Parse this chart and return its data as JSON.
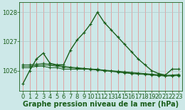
{
  "xlabel": "Graphe pression niveau de la mer (hPa)",
  "background_color": "#cde8e8",
  "plot_bg_color": "#cde8e8",
  "grid_color_h": "#b0c8c8",
  "grid_color_v": "#e88888",
  "line_color": "#1a5e1a",
  "marker": "+",
  "xlim": [
    -0.5,
    23.5
  ],
  "ylim": [
    1025.3,
    1028.35
  ],
  "yticks": [
    1026,
    1027,
    1028
  ],
  "xticks": [
    0,
    1,
    2,
    3,
    4,
    5,
    6,
    7,
    8,
    9,
    10,
    11,
    12,
    13,
    14,
    15,
    16,
    17,
    18,
    19,
    20,
    21,
    22,
    23
  ],
  "series": [
    [
      1025.55,
      1026.0,
      1026.4,
      1026.6,
      1026.25,
      1026.2,
      1026.2,
      1026.7,
      1027.05,
      1027.3,
      1027.6,
      1028.0,
      1027.65,
      1027.4,
      1027.15,
      1026.9,
      1026.65,
      1026.4,
      1026.2,
      1026.0,
      1025.9,
      1025.85,
      1026.05,
      1026.05
    ],
    [
      1026.1,
      1026.1,
      1026.15,
      1026.15,
      1026.1,
      1026.1,
      1026.05,
      1026.05,
      1026.05,
      1026.05,
      1026.05,
      1026.05,
      1026.0,
      1025.98,
      1025.95,
      1025.92,
      1025.9,
      1025.88,
      1025.87,
      1025.85,
      1025.83,
      1025.82,
      1025.82,
      1025.83
    ],
    [
      1026.15,
      1026.15,
      1026.18,
      1026.2,
      1026.18,
      1026.15,
      1026.12,
      1026.1,
      1026.08,
      1026.06,
      1026.04,
      1026.02,
      1026.0,
      1025.98,
      1025.96,
      1025.94,
      1025.92,
      1025.9,
      1025.88,
      1025.86,
      1025.84,
      1025.82,
      1025.83,
      1025.85
    ],
    [
      1026.2,
      1026.2,
      1026.22,
      1026.25,
      1026.22,
      1026.18,
      1026.15,
      1026.12,
      1026.1,
      1026.08,
      1026.06,
      1026.04,
      1026.02,
      1026.0,
      1025.98,
      1025.96,
      1025.94,
      1025.92,
      1025.9,
      1025.88,
      1025.86,
      1025.84,
      1025.85,
      1025.87
    ]
  ],
  "title_fontsize": 7,
  "tick_fontsize": 6,
  "title_color": "#1a5e1a",
  "tick_color": "#1a5e1a",
  "figsize": [
    2.6,
    1.55
  ],
  "dpi": 100
}
